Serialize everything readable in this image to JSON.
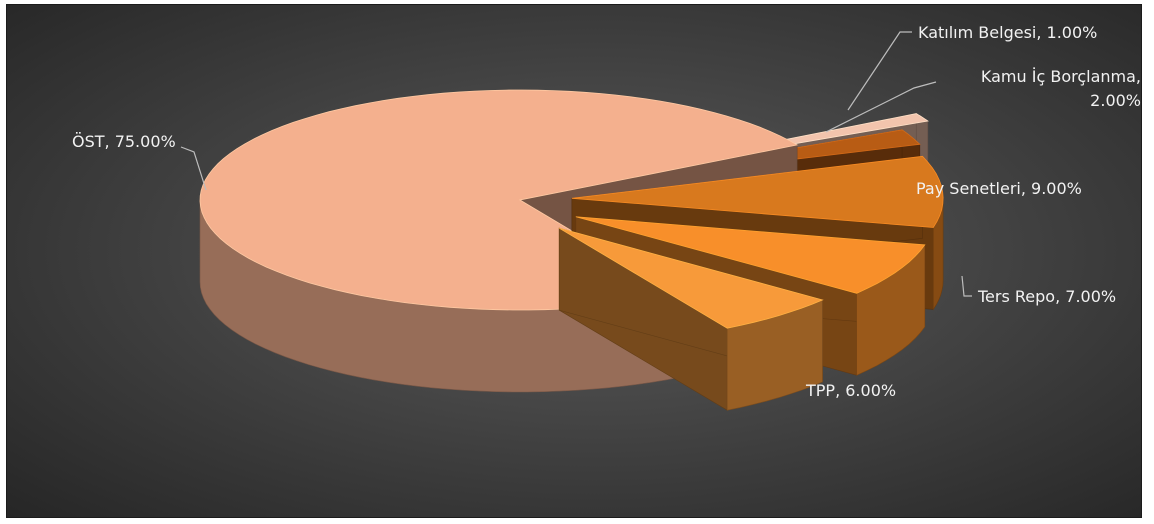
{
  "chart_data": {
    "type": "pie",
    "style": "3d-exploded",
    "categories": [
      "ÖST",
      "Katılım Belgesi",
      "Kamu İç Borçlanma",
      "Pay Senetleri",
      "Ters Repo",
      "TPP"
    ],
    "values": [
      75.0,
      1.0,
      2.0,
      9.0,
      7.0,
      6.0
    ],
    "unit": "%",
    "data_labels": [
      [
        "ÖST, 75.00%"
      ],
      [
        "Katılım Belgesi, 1.00%"
      ],
      [
        "Kamu İç Borçlanma,",
        "2.00%"
      ],
      [
        "Pay Senetleri, 9.00%"
      ],
      [
        "Ters Repo, 7.00%"
      ],
      [
        "TPP, 6.00%"
      ]
    ],
    "colors": [
      "#f4b08e",
      "#f2c4ad",
      "#b85c14",
      "#d8791e",
      "#f88f2a",
      "#f79a3a"
    ],
    "legend": "none",
    "background": "#3c3c3c"
  }
}
